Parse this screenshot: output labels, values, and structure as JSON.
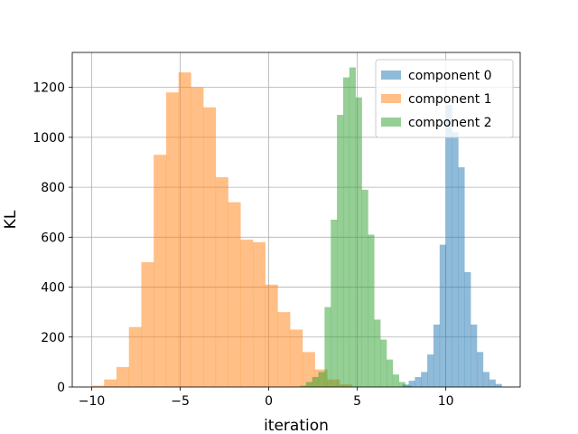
{
  "chart_data": {
    "type": "bar",
    "subtype": "histogram",
    "title": "",
    "xlabel": "iteration",
    "ylabel": "KL",
    "xlim": [
      -11.1,
      14.2
    ],
    "ylim": [
      0,
      1340
    ],
    "xticks": [
      -10,
      -5,
      0,
      5,
      10
    ],
    "xtick_labels": [
      "−10",
      "−5",
      "0",
      "5",
      "10"
    ],
    "yticks": [
      0,
      200,
      400,
      600,
      800,
      1000,
      1200
    ],
    "ytick_labels": [
      "0",
      "200",
      "400",
      "600",
      "800",
      "1000",
      "1200"
    ],
    "grid": true,
    "legend_position": "top-right",
    "series": [
      {
        "name": "component 0",
        "color": "#1f77b4",
        "opacity": 0.5,
        "bins": [
          [
            7.55,
            7.9,
            10
          ],
          [
            7.9,
            8.25,
            25
          ],
          [
            8.25,
            8.6,
            40
          ],
          [
            8.6,
            8.95,
            60
          ],
          [
            8.95,
            9.3,
            130
          ],
          [
            9.3,
            9.65,
            250
          ],
          [
            9.65,
            10.0,
            570
          ],
          [
            10.0,
            10.35,
            1130
          ],
          [
            10.35,
            10.7,
            1020
          ],
          [
            10.7,
            11.05,
            880
          ],
          [
            11.05,
            11.4,
            460
          ],
          [
            11.4,
            11.75,
            250
          ],
          [
            11.75,
            12.1,
            140
          ],
          [
            12.1,
            12.45,
            60
          ],
          [
            12.45,
            12.8,
            30
          ],
          [
            12.8,
            13.15,
            12
          ]
        ]
      },
      {
        "name": "component 1",
        "color": "#ff7f0e",
        "opacity": 0.5,
        "bins": [
          [
            -10.0,
            -9.3,
            5
          ],
          [
            -9.3,
            -8.6,
            30
          ],
          [
            -8.6,
            -7.9,
            80
          ],
          [
            -7.9,
            -7.2,
            240
          ],
          [
            -7.2,
            -6.5,
            500
          ],
          [
            -6.5,
            -5.8,
            930
          ],
          [
            -5.8,
            -5.1,
            1180
          ],
          [
            -5.1,
            -4.4,
            1260
          ],
          [
            -4.4,
            -3.7,
            1200
          ],
          [
            -3.7,
            -3.0,
            1120
          ],
          [
            -3.0,
            -2.3,
            840
          ],
          [
            -2.3,
            -1.6,
            740
          ],
          [
            -1.6,
            -0.9,
            590
          ],
          [
            -0.9,
            -0.2,
            580
          ],
          [
            -0.2,
            0.5,
            410
          ],
          [
            0.5,
            1.2,
            300
          ],
          [
            1.2,
            1.9,
            230
          ],
          [
            1.9,
            2.6,
            140
          ],
          [
            2.6,
            3.3,
            70
          ],
          [
            3.3,
            4.0,
            30
          ],
          [
            4.0,
            4.7,
            10
          ]
        ]
      },
      {
        "name": "component 2",
        "color": "#2ca02c",
        "opacity": 0.5,
        "bins": [
          [
            1.75,
            2.1,
            5
          ],
          [
            2.1,
            2.45,
            20
          ],
          [
            2.45,
            2.8,
            40
          ],
          [
            2.8,
            3.15,
            60
          ],
          [
            3.15,
            3.5,
            320
          ],
          [
            3.5,
            3.85,
            670
          ],
          [
            3.85,
            4.2,
            1090
          ],
          [
            4.2,
            4.55,
            1240
          ],
          [
            4.55,
            4.9,
            1280
          ],
          [
            4.9,
            5.25,
            1160
          ],
          [
            5.25,
            5.6,
            790
          ],
          [
            5.6,
            5.95,
            610
          ],
          [
            5.95,
            6.3,
            270
          ],
          [
            6.3,
            6.65,
            190
          ],
          [
            6.65,
            7.0,
            110
          ],
          [
            7.0,
            7.35,
            50
          ],
          [
            7.35,
            7.7,
            20
          ],
          [
            7.7,
            8.05,
            5
          ]
        ]
      }
    ]
  }
}
